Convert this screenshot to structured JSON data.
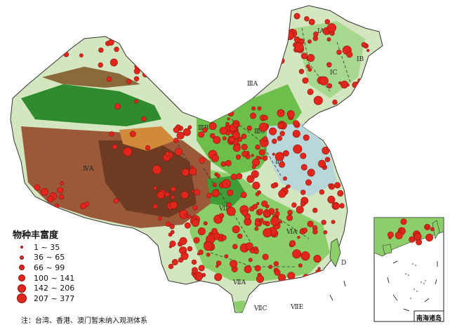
{
  "legend": {
    "title": "物种丰富度",
    "classes": [
      {
        "label": "1 ~ 35"
      },
      {
        "label": "36 ~ 65"
      },
      {
        "label": "66 ~ 99"
      },
      {
        "label": "100 ~ 141"
      },
      {
        "label": "142 ~ 206"
      },
      {
        "label": "207 ~ 377"
      }
    ]
  },
  "note": "注：台湾、香港、澳门暂未纳入观测体系",
  "inset": {
    "title": "南海诸岛"
  },
  "zone_labels": [
    "ⅠA",
    "ⅠB",
    "ⅠC",
    "ⅢA",
    "ⅢB",
    "ⅢC",
    "ⅡA",
    "ⅣA",
    "ⅥB",
    "ⅥA",
    "ⅦA",
    "ⅦC",
    "ⅦE",
    "D"
  ],
  "colors": {
    "marker_fill": "#e3261c",
    "marker_stroke": "#8a1410",
    "lowland_green": "#2e8b2e",
    "basin_green": "#4caf3a",
    "plateau_brown": "#9a5a3a",
    "high_brown": "#6e3b22",
    "plain_pale": "#d4e6c0",
    "plain_blue": "#b7d7d8"
  }
}
